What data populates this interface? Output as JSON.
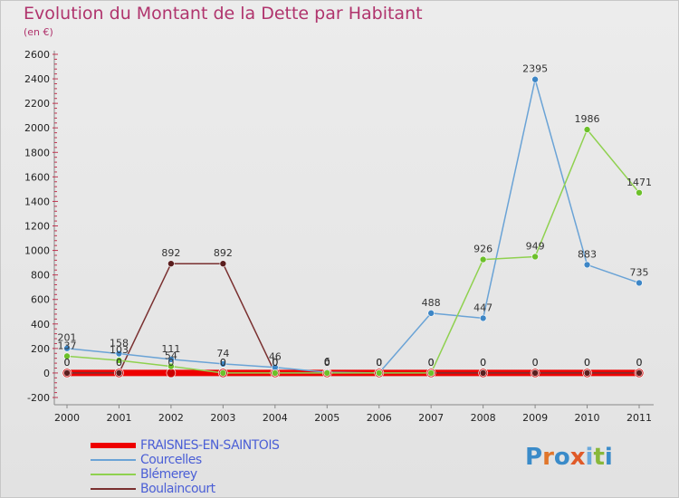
{
  "title": "Evolution du Montant de la Dette par Habitant",
  "subtitle": "(en €)",
  "logo": {
    "text": "Proxiti",
    "letters": [
      "P",
      "r",
      "o",
      "x",
      "i",
      "t",
      "i"
    ],
    "colors": [
      "#3a8bc9",
      "#e0762b",
      "#3a8bc9",
      "#e05a28",
      "#6aa9dc",
      "#88b83a",
      "#3a8bc9"
    ]
  },
  "chart_data": {
    "type": "line",
    "x": [
      "2000",
      "2001",
      "2002",
      "2003",
      "2004",
      "2005",
      "2006",
      "2007",
      "2008",
      "2009",
      "2010",
      "2011"
    ],
    "ylim": [
      -200,
      2600
    ],
    "yticks": [
      -200,
      0,
      200,
      400,
      600,
      800,
      1000,
      1200,
      1400,
      1600,
      1800,
      2000,
      2200,
      2400,
      2600
    ],
    "grid": false,
    "legend_position": "bottom-left",
    "series": [
      {
        "name": "FRAISNES-EN-SAINTOIS",
        "color": "#ee0000",
        "values": [
          0,
          0,
          0,
          0,
          0,
          0,
          0,
          0,
          0,
          0,
          0,
          0
        ],
        "labels": [
          "0",
          "0",
          "0",
          "0",
          "0",
          "0",
          "0",
          "0",
          "0",
          "0",
          "0",
          "0"
        ]
      },
      {
        "name": "Courcelles",
        "color": "#6aa3d6",
        "values": [
          201,
          158,
          111,
          74,
          46,
          6,
          0,
          488,
          447,
          2395,
          883,
          735
        ],
        "labels": [
          "201",
          "158",
          "111",
          "74",
          "46",
          "6",
          "0",
          "488",
          "447",
          "2395",
          "883",
          "735"
        ]
      },
      {
        "name": "Blémerey",
        "color": "#8fd14f",
        "values": [
          137,
          103,
          54,
          0,
          0,
          0,
          0,
          0,
          926,
          949,
          1986,
          1471
        ],
        "labels": [
          "137",
          "103",
          "54",
          "0",
          "0",
          "0",
          "0",
          "0",
          "926",
          "949",
          "1986",
          "1471"
        ]
      },
      {
        "name": "Boulaincourt",
        "color": "#7a3030",
        "values": [
          0,
          0,
          892,
          892,
          0,
          0,
          0,
          0,
          0,
          0,
          0,
          0
        ],
        "labels": [
          "0",
          "0",
          "892",
          "892",
          "0",
          "0",
          "0",
          "0",
          "0",
          "0",
          "0",
          "0"
        ]
      }
    ]
  }
}
